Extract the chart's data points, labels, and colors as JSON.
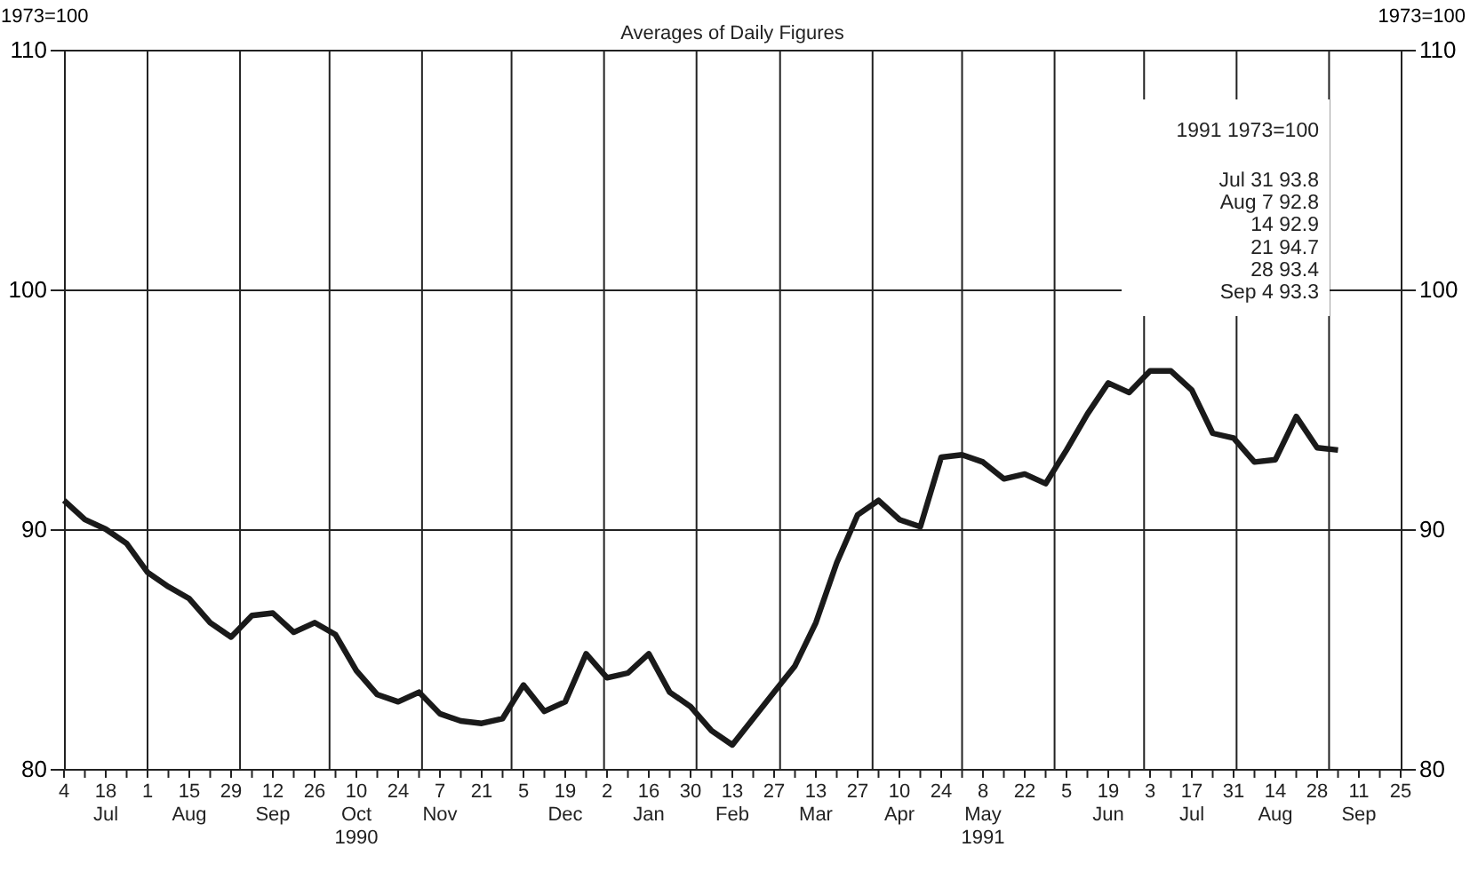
{
  "chart_data": {
    "type": "line",
    "subtitle": "Averages of Daily Figures",
    "ylabel": "1973=100",
    "y2label": "1973=100",
    "x": [
      "1990-07-04",
      "1990-07-11",
      "1990-07-18",
      "1990-07-25",
      "1990-08-01",
      "1990-08-08",
      "1990-08-15",
      "1990-08-22",
      "1990-08-29",
      "1990-09-05",
      "1990-09-12",
      "1990-09-19",
      "1990-09-26",
      "1990-10-03",
      "1990-10-10",
      "1990-10-17",
      "1990-10-24",
      "1990-10-31",
      "1990-11-07",
      "1990-11-14",
      "1990-11-21",
      "1990-11-28",
      "1990-12-05",
      "1990-12-12",
      "1990-12-19",
      "1990-12-26",
      "1991-01-02",
      "1991-01-09",
      "1991-01-16",
      "1991-01-23",
      "1991-01-30",
      "1991-02-06",
      "1991-02-13",
      "1991-02-20",
      "1991-02-27",
      "1991-03-06",
      "1991-03-13",
      "1991-03-20",
      "1991-03-27",
      "1991-04-03",
      "1991-04-10",
      "1991-04-17",
      "1991-04-24",
      "1991-05-01",
      "1991-05-08",
      "1991-05-15",
      "1991-05-22",
      "1991-05-29",
      "1991-06-05",
      "1991-06-12",
      "1991-06-19",
      "1991-06-26",
      "1991-07-03",
      "1991-07-10",
      "1991-07-17",
      "1991-07-24",
      "1991-07-31",
      "1991-08-07",
      "1991-08-14",
      "1991-08-21",
      "1991-08-28",
      "1991-09-04"
    ],
    "series": [
      {
        "color": "#1a1a1a",
        "values": [
          91.2,
          90.4,
          90.0,
          89.4,
          88.2,
          87.6,
          87.1,
          86.1,
          85.5,
          86.4,
          86.5,
          85.7,
          86.1,
          85.6,
          84.1,
          83.1,
          82.8,
          83.2,
          82.3,
          82.0,
          81.9,
          82.1,
          83.5,
          82.4,
          82.8,
          84.8,
          83.8,
          84.0,
          84.8,
          83.2,
          82.6,
          81.6,
          81.0,
          82.1,
          83.2,
          84.3,
          86.1,
          88.6,
          90.6,
          91.2,
          90.4,
          90.1,
          93.0,
          93.1,
          92.8,
          92.1,
          92.3,
          91.9,
          93.3,
          94.8,
          96.1,
          95.7,
          96.6,
          96.6,
          95.8,
          94.0,
          93.8,
          92.8,
          92.9,
          94.7,
          93.4,
          93.3
        ]
      }
    ],
    "xlim": [
      "1990-07-04",
      "1991-09-25"
    ],
    "xticks": [
      {
        "value": "1990-07-04",
        "label": "4"
      },
      {
        "value": "1990-07-11",
        "label": null
      },
      {
        "value": "1990-07-18",
        "label": "18\nJul"
      },
      {
        "value": "1990-07-25",
        "label": null
      },
      {
        "value": "1990-08-01",
        "label": "1"
      },
      {
        "value": "1990-08-08",
        "label": null
      },
      {
        "value": "1990-08-15",
        "label": "15\nAug"
      },
      {
        "value": "1990-08-22",
        "label": null
      },
      {
        "value": "1990-08-29",
        "label": "29"
      },
      {
        "value": "1990-09-05",
        "label": null
      },
      {
        "value": "1990-09-12",
        "label": "12\nSep"
      },
      {
        "value": "1990-09-19",
        "label": null
      },
      {
        "value": "1990-09-26",
        "label": "26"
      },
      {
        "value": "1990-10-03",
        "label": null
      },
      {
        "value": "1990-10-10",
        "label": "10\nOct\n1990"
      },
      {
        "value": "1990-10-17",
        "label": null
      },
      {
        "value": "1990-10-24",
        "label": "24"
      },
      {
        "value": "1990-10-31",
        "label": null
      },
      {
        "value": "1990-11-07",
        "label": "7\nNov"
      },
      {
        "value": "1990-11-14",
        "label": null
      },
      {
        "value": "1990-11-21",
        "label": "21"
      },
      {
        "value": "1990-11-28",
        "label": null
      },
      {
        "value": "1990-12-05",
        "label": "5"
      },
      {
        "value": "1990-12-12",
        "label": null
      },
      {
        "value": "1990-12-19",
        "label": "19\nDec"
      },
      {
        "value": "1990-12-26",
        "label": null
      },
      {
        "value": "1991-01-02",
        "label": "2"
      },
      {
        "value": "1991-01-09",
        "label": null
      },
      {
        "value": "1991-01-16",
        "label": "16\nJan"
      },
      {
        "value": "1991-01-23",
        "label": null
      },
      {
        "value": "1991-01-30",
        "label": "30"
      },
      {
        "value": "1991-02-06",
        "label": null
      },
      {
        "value": "1991-02-13",
        "label": "13\nFeb"
      },
      {
        "value": "1991-02-20",
        "label": null
      },
      {
        "value": "1991-02-27",
        "label": "27"
      },
      {
        "value": "1991-03-06",
        "label": null
      },
      {
        "value": "1991-03-13",
        "label": "13\nMar"
      },
      {
        "value": "1991-03-20",
        "label": null
      },
      {
        "value": "1991-03-27",
        "label": "27"
      },
      {
        "value": "1991-04-03",
        "label": null
      },
      {
        "value": "1991-04-10",
        "label": "10\nApr"
      },
      {
        "value": "1991-04-17",
        "label": null
      },
      {
        "value": "1991-04-24",
        "label": "24"
      },
      {
        "value": "1991-05-01",
        "label": null
      },
      {
        "value": "1991-05-08",
        "label": "8\nMay\n1991"
      },
      {
        "value": "1991-05-15",
        "label": null
      },
      {
        "value": "1991-05-22",
        "label": "22"
      },
      {
        "value": "1991-05-29",
        "label": null
      },
      {
        "value": "1991-06-05",
        "label": "5"
      },
      {
        "value": "1991-06-12",
        "label": null
      },
      {
        "value": "1991-06-19",
        "label": "19\nJun"
      },
      {
        "value": "1991-06-26",
        "label": null
      },
      {
        "value": "1991-07-03",
        "label": "3"
      },
      {
        "value": "1991-07-10",
        "label": null
      },
      {
        "value": "1991-07-17",
        "label": "17\nJul"
      },
      {
        "value": "1991-07-24",
        "label": null
      },
      {
        "value": "1991-07-31",
        "label": "31"
      },
      {
        "value": "1991-08-07",
        "label": null
      },
      {
        "value": "1991-08-14",
        "label": "14\nAug"
      },
      {
        "value": "1991-08-21",
        "label": null
      },
      {
        "value": "1991-08-28",
        "label": "28"
      },
      {
        "value": "1991-09-04",
        "label": null
      },
      {
        "value": "1991-09-11",
        "label": "11\nSep"
      },
      {
        "value": "1991-09-18",
        "label": null
      },
      {
        "value": "1991-09-25",
        "label": "25"
      }
    ],
    "ylim": [
      80,
      110
    ],
    "yticks": [
      80,
      90,
      100,
      110
    ],
    "y2lim": [
      80,
      110
    ],
    "y2ticks": [
      80,
      90,
      100,
      110
    ],
    "grid": "y",
    "line_style": "solid",
    "marker": "none",
    "ref_lines": [
      {
        "axis": "x",
        "value": "1990-08-01"
      },
      {
        "axis": "x",
        "value": "1990-09-01"
      },
      {
        "axis": "x",
        "value": "1990-10-01"
      },
      {
        "axis": "x",
        "value": "1990-11-01"
      },
      {
        "axis": "x",
        "value": "1990-12-01"
      },
      {
        "axis": "x",
        "value": "1991-01-01"
      },
      {
        "axis": "x",
        "value": "1991-02-01"
      },
      {
        "axis": "x",
        "value": "1991-03-01"
      },
      {
        "axis": "x",
        "value": "1991-04-01"
      },
      {
        "axis": "x",
        "value": "1991-05-01"
      },
      {
        "axis": "x",
        "value": "1991-06-01"
      },
      {
        "axis": "x",
        "value": "1991-07-01"
      },
      {
        "axis": "x",
        "value": "1991-08-01"
      },
      {
        "axis": "x",
        "value": "1991-09-01"
      }
    ],
    "annotations": [
      "1991  1973=100",
      "Jul 31   93.8",
      "Aug 7   92.8",
      "14   92.9",
      "21   94.7",
      "28   93.4",
      "Sep 4   93.3"
    ]
  }
}
